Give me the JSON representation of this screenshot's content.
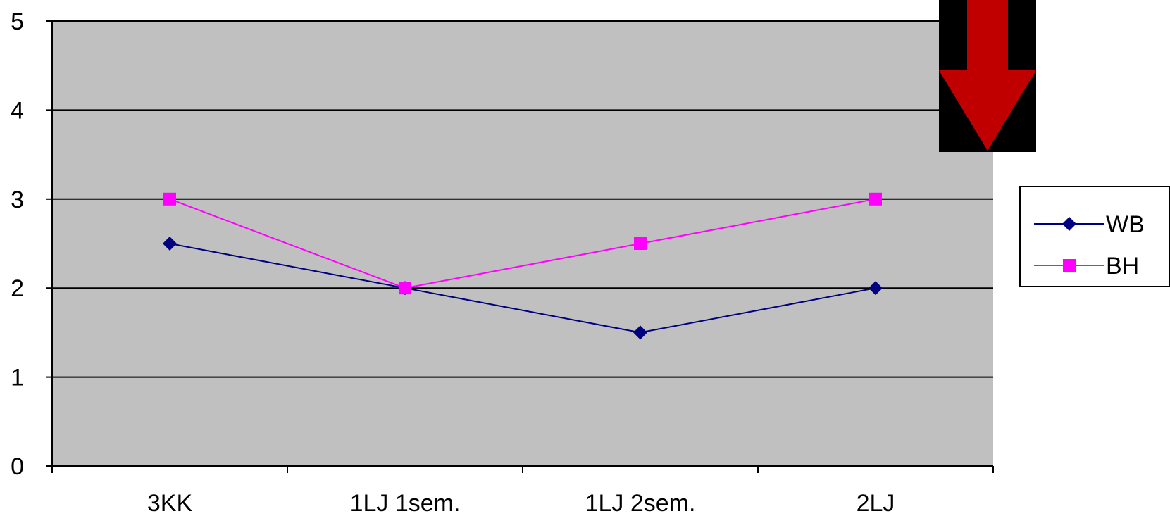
{
  "chart_data": {
    "type": "line",
    "title": "",
    "xlabel": "",
    "ylabel": "",
    "categories": [
      "3KK",
      "1LJ 1sem.",
      "1LJ 2sem.",
      "2LJ"
    ],
    "series": [
      {
        "name": "WB",
        "values": [
          2.5,
          2,
          1.5,
          2
        ],
        "color": "#000080",
        "marker": "diamond"
      },
      {
        "name": "BH",
        "values": [
          3,
          2,
          2.5,
          3
        ],
        "color": "#ff00ff",
        "marker": "square"
      }
    ],
    "ylim": [
      0,
      5
    ],
    "yticks": [
      "0",
      "1",
      "2",
      "3",
      "4",
      "5"
    ],
    "grid": true,
    "plot_background": "#c0c0c0",
    "legend_position": "right",
    "annotation": {
      "type": "arrow-down-icon",
      "fill": "#c00000",
      "background": "#000000"
    }
  }
}
